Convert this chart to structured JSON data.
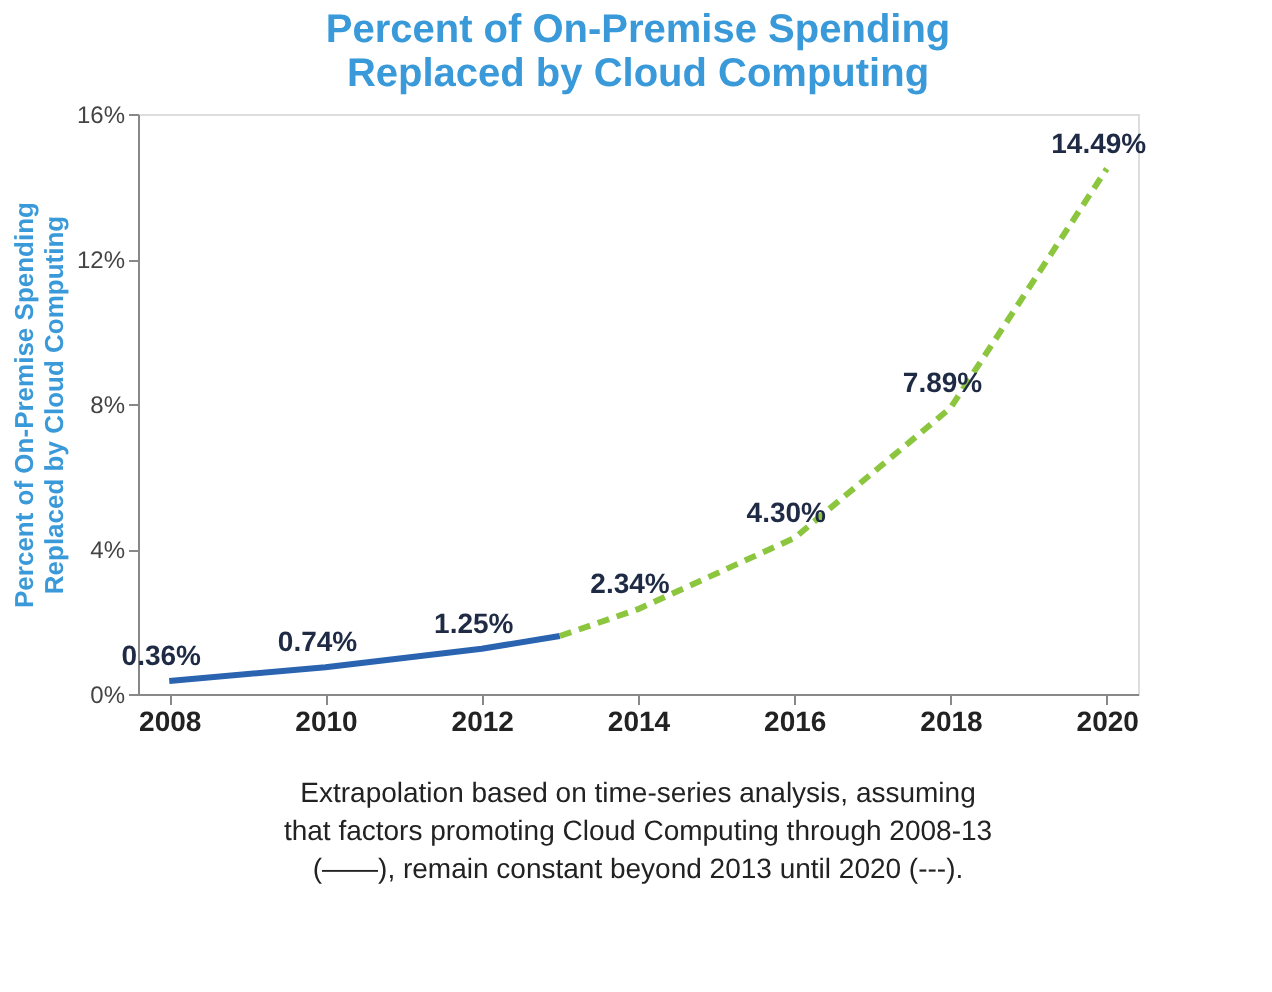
{
  "chart_data": {
    "type": "line",
    "title": [
      "Percent of On-Premise Spending",
      "Replaced by Cloud Computing"
    ],
    "ylabel": "Percent of On-Premise Spending\nReplaced by Cloud Computing",
    "xlim": [
      2007.6,
      2020.4
    ],
    "xticks": [
      2008,
      2010,
      2012,
      2014,
      2016,
      2018,
      2020
    ],
    "ylim": [
      0,
      16
    ],
    "yticks": [
      {
        "value": 0,
        "label": "0%"
      },
      {
        "value": 4,
        "label": "4%"
      },
      {
        "value": 8,
        "label": "8%"
      },
      {
        "value": 12,
        "label": "12%"
      },
      {
        "value": 16,
        "label": "16%"
      }
    ],
    "grid": false,
    "marker": "none",
    "series": [
      {
        "color": "#2a64b0",
        "line_style": "solid",
        "x": [
          2008,
          2010,
          2012,
          2013
        ],
        "values": [
          0.36,
          0.74,
          1.25,
          1.6
        ],
        "value_labels": [
          "0.36%",
          "0.74%",
          "1.25%",
          null
        ]
      },
      {
        "color": "#8cc63e",
        "line_style": "dashed",
        "x": [
          2013,
          2014,
          2016,
          2018,
          2020
        ],
        "values": [
          1.6,
          2.34,
          4.3,
          7.89,
          14.49
        ],
        "value_labels": [
          null,
          "2.34%",
          "4.30%",
          "7.89%",
          "14.49%"
        ]
      }
    ],
    "annotations": [
      "Extrapolation based on time-series analysis, assuming",
      "that factors promoting Cloud Computing through 2008-13",
      "(——), remain constant beyond 2013 until 2020 (---)."
    ]
  }
}
